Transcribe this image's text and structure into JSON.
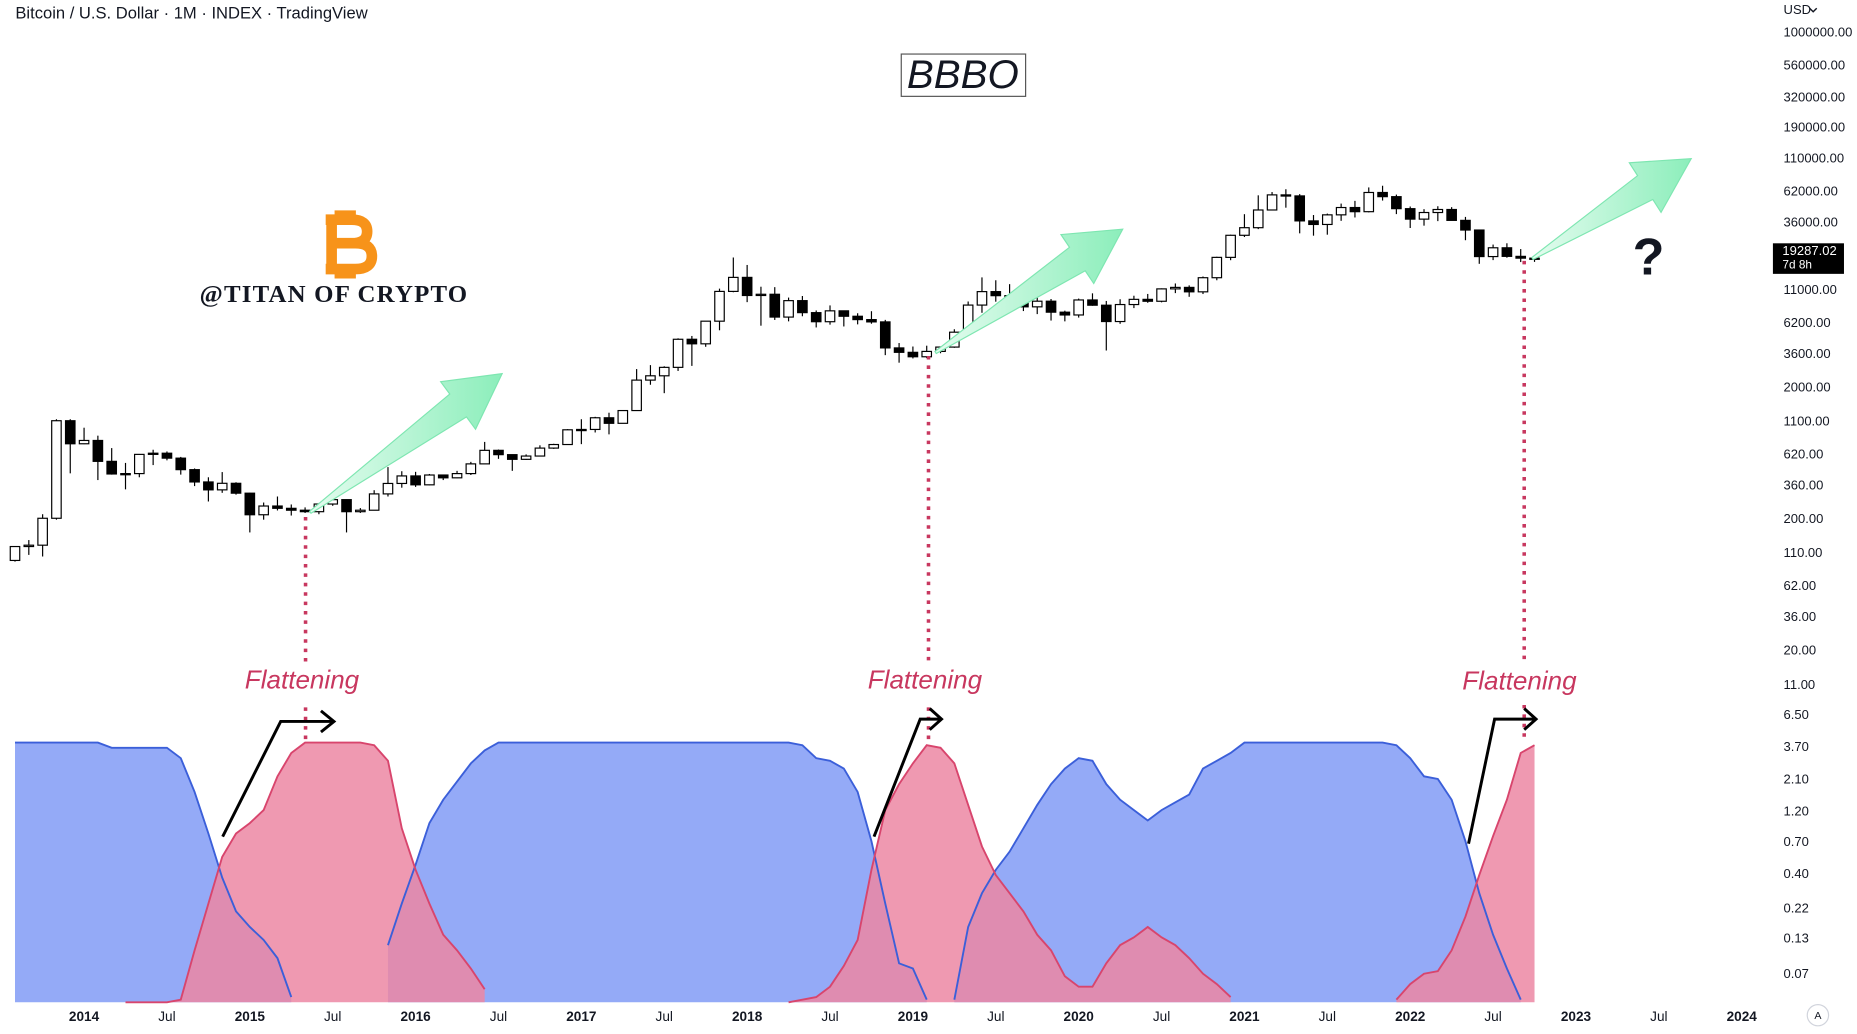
{
  "chart_data": [
    {
      "type": "candlestick",
      "title": "Bitcoin / U.S. Dollar · 1M · INDEX · TradingView",
      "currency": "USD",
      "countdown": "7d 8h",
      "scale_button": "A",
      "annotations": [
        "BBBO",
        "@TITAN OF CRYPTO",
        "Flattening",
        "Flattening",
        "Flattening",
        "?"
      ],
      "log_scale": true,
      "up_color": "#ffffff",
      "down_color": "#000000",
      "wick_color": "#000000",
      "xlim": [
        "2013-07",
        "2024-03"
      ],
      "ylim": [
        0.043,
        1780000
      ],
      "xticks": [
        {
          "value": "2014-01",
          "label": "2014"
        },
        {
          "value": "2014-07",
          "label": "Jul"
        },
        {
          "value": "2015-01",
          "label": "2015"
        },
        {
          "value": "2015-07",
          "label": "Jul"
        },
        {
          "value": "2016-01",
          "label": "2016"
        },
        {
          "value": "2016-07",
          "label": "Jul"
        },
        {
          "value": "2017-01",
          "label": "2017"
        },
        {
          "value": "2017-07",
          "label": "Jul"
        },
        {
          "value": "2018-01",
          "label": "2018"
        },
        {
          "value": "2018-07",
          "label": "Jul"
        },
        {
          "value": "2019-01",
          "label": "2019"
        },
        {
          "value": "2019-07",
          "label": "Jul"
        },
        {
          "value": "2020-01",
          "label": "2020"
        },
        {
          "value": "2020-07",
          "label": "Jul"
        },
        {
          "value": "2021-01",
          "label": "2021"
        },
        {
          "value": "2021-07",
          "label": "Jul"
        },
        {
          "value": "2022-01",
          "label": "2022"
        },
        {
          "value": "2022-07",
          "label": "Jul"
        },
        {
          "value": "2023-01",
          "label": "2023"
        },
        {
          "value": "2023-07",
          "label": "Jul"
        },
        {
          "value": "2024-01",
          "label": "2024"
        }
      ],
      "yticks": [
        {
          "value": 1000000,
          "label": "1000000.00"
        },
        {
          "value": 560000,
          "label": "560000.00"
        },
        {
          "value": 320000,
          "label": "320000.00"
        },
        {
          "value": 190000,
          "label": "190000.00"
        },
        {
          "value": 110000,
          "label": "110000.00"
        },
        {
          "value": 62000,
          "label": "62000.00"
        },
        {
          "value": 36000,
          "label": "36000.00"
        },
        {
          "value": 11000,
          "label": "11000.00"
        },
        {
          "value": 6200,
          "label": "6200.00"
        },
        {
          "value": 3600,
          "label": "3600.00"
        },
        {
          "value": 2000,
          "label": "2000.00"
        },
        {
          "value": 1100,
          "label": "1100.00"
        },
        {
          "value": 620,
          "label": "620.00"
        },
        {
          "value": 360,
          "label": "360.00"
        },
        {
          "value": 200,
          "label": "200.00"
        },
        {
          "value": 110,
          "label": "110.00"
        },
        {
          "value": 62,
          "label": "62.00"
        },
        {
          "value": 36,
          "label": "36.00"
        },
        {
          "value": 20,
          "label": "20.00"
        },
        {
          "value": 11,
          "label": "11.00"
        },
        {
          "value": 6.5,
          "label": "6.50"
        },
        {
          "value": 3.7,
          "label": "3.70"
        },
        {
          "value": 2.1,
          "label": "2.10"
        },
        {
          "value": 1.2,
          "label": "1.20"
        },
        {
          "value": 0.7,
          "label": "0.70"
        },
        {
          "value": 0.4,
          "label": "0.40"
        },
        0.22,
        0.13,
        0.07
      ],
      "x": [
        "2013-08",
        "2013-09",
        "2013-10",
        "2013-11",
        "2013-12",
        "2014-01",
        "2014-02",
        "2014-03",
        "2014-04",
        "2014-05",
        "2014-06",
        "2014-07",
        "2014-08",
        "2014-09",
        "2014-10",
        "2014-11",
        "2014-12",
        "2015-01",
        "2015-02",
        "2015-03",
        "2015-04",
        "2015-05",
        "2015-06",
        "2015-07",
        "2015-08",
        "2015-09",
        "2015-10",
        "2015-11",
        "2015-12",
        "2016-01",
        "2016-02",
        "2016-03",
        "2016-04",
        "2016-05",
        "2016-06",
        "2016-07",
        "2016-08",
        "2016-09",
        "2016-10",
        "2016-11",
        "2016-12",
        "2017-01",
        "2017-02",
        "2017-03",
        "2017-04",
        "2017-05",
        "2017-06",
        "2017-07",
        "2017-08",
        "2017-09",
        "2017-10",
        "2017-11",
        "2017-12",
        "2018-01",
        "2018-02",
        "2018-03",
        "2018-04",
        "2018-05",
        "2018-06",
        "2018-07",
        "2018-08",
        "2018-09",
        "2018-10",
        "2018-11",
        "2018-12",
        "2019-01",
        "2019-02",
        "2019-03",
        "2019-04",
        "2019-05",
        "2019-06",
        "2019-07",
        "2019-08",
        "2019-09",
        "2019-10",
        "2019-11",
        "2019-12",
        "2020-01",
        "2020-02",
        "2020-03",
        "2020-04",
        "2020-05",
        "2020-06",
        "2020-07",
        "2020-08",
        "2020-09",
        "2020-10",
        "2020-11",
        "2020-12",
        "2021-01",
        "2021-02",
        "2021-03",
        "2021-04",
        "2021-05",
        "2021-06",
        "2021-07",
        "2021-08",
        "2021-09",
        "2021-10",
        "2021-11",
        "2021-12",
        "2022-01",
        "2022-02",
        "2022-03",
        "2022-04",
        "2022-05",
        "2022-06",
        "2022-07",
        "2022-08",
        "2022-09",
        "2022-10"
      ],
      "open": [
        98,
        125,
        128,
        205,
        1130,
        755,
        800,
        555,
        445,
        448,
        627,
        640,
        587,
        480,
        387,
        337,
        378,
        318,
        218,
        254,
        244,
        236,
        230,
        263,
        284,
        230,
        236,
        314,
        377,
        430,
        368,
        437,
        416,
        448,
        531,
        673,
        624,
        575,
        609,
        700,
        745,
        964,
        970,
        1190,
        1080,
        1350,
        2300,
        2480,
        2875,
        4700,
        4340,
        6450,
        10860,
        13880,
        10110,
        10330,
        6930,
        9240,
        7490,
        6390,
        7730,
        7030,
        6630,
        6370,
        4040,
        3740,
        3460,
        3800,
        4100,
        5320,
        8550,
        10820,
        10080,
        9590,
        8290,
        9150,
        7550,
        7190,
        9350,
        8530,
        6410,
        8630,
        9450,
        9140,
        11350,
        11650,
        10780,
        13800,
        19700,
        28990,
        33110,
        45140,
        58800,
        57750,
        37300,
        35040,
        41460,
        47130,
        43820,
        61320,
        57000,
        46200,
        38470,
        43190,
        45530,
        37640,
        31790,
        19980,
        23300,
        20050,
        19430
      ],
      "high": [
        125,
        140,
        220,
        1160,
        1160,
        1000,
        870,
        700,
        540,
        630,
        680,
        660,
        600,
        490,
        420,
        460,
        385,
        320,
        270,
        300,
        261,
        248,
        268,
        315,
        285,
        245,
        335,
        502,
        467,
        462,
        445,
        440,
        470,
        550,
        780,
        683,
        625,
        627,
        735,
        755,
        975,
        1160,
        1210,
        1300,
        1350,
        2790,
        2990,
        2930,
        4780,
        4980,
        6470,
        11400,
        19660,
        17250,
        11790,
        11700,
        9750,
        10020,
        7780,
        8500,
        7760,
        7410,
        7680,
        6600,
        4400,
        4140,
        4200,
        4150,
        5600,
        9100,
        13880,
        13200,
        12330,
        10950,
        10370,
        9510,
        7750,
        9580,
        10500,
        9190,
        9470,
        10070,
        10390,
        11450,
        12480,
        12070,
        14100,
        19920,
        29300,
        41950,
        58350,
        61790,
        64900,
        59600,
        41330,
        42400,
        50500,
        52950,
        67000,
        69000,
        59100,
        47990,
        45800,
        48200,
        47430,
        40000,
        31960,
        24650,
        25210,
        22780,
        20200
      ],
      "low": [
        96,
        108,
        105,
        200,
        450,
        750,
        400,
        440,
        340,
        420,
        520,
        565,
        440,
        360,
        275,
        320,
        310,
        160,
        200,
        235,
        215,
        225,
        220,
        255,
        160,
        225,
        235,
        300,
        350,
        355,
        365,
        400,
        414,
        437,
        530,
        580,
        470,
        570,
        605,
        690,
        740,
        750,
        920,
        890,
        1080,
        1350,
        2120,
        1830,
        2700,
        2950,
        4120,
        5500,
        10700,
        9000,
        5960,
        6590,
        6430,
        7030,
        5780,
        6070,
        5880,
        6100,
        6170,
        3560,
        3120,
        3360,
        3380,
        3680,
        4050,
        5310,
        7470,
        9070,
        9350,
        7700,
        7300,
        6520,
        6430,
        6870,
        8450,
        3860,
        6160,
        8110,
        8900,
        8970,
        10540,
        9880,
        10370,
        13200,
        18750,
        28130,
        32300,
        44950,
        47000,
        30000,
        28800,
        29300,
        37330,
        39600,
        43300,
        53250,
        42000,
        32930,
        34320,
        37150,
        37700,
        26600,
        17600,
        18780,
        19580,
        18150,
        18200
      ],
      "close": [
        125,
        128,
        205,
        1130,
        755,
        800,
        555,
        445,
        448,
        627,
        640,
        587,
        480,
        387,
        337,
        378,
        318,
        218,
        254,
        244,
        236,
        230,
        263,
        284,
        230,
        236,
        314,
        377,
        430,
        368,
        437,
        416,
        448,
        531,
        673,
        624,
        575,
        609,
        700,
        745,
        964,
        970,
        1190,
        1080,
        1350,
        2300,
        2480,
        2875,
        4700,
        4340,
        6450,
        10860,
        13880,
        10110,
        10330,
        6930,
        9240,
        7490,
        6390,
        7730,
        7030,
        6630,
        6370,
        4040,
        3740,
        3460,
        3800,
        4100,
        5320,
        8550,
        10820,
        10080,
        9590,
        8290,
        9150,
        7550,
        7190,
        9350,
        8530,
        6410,
        8630,
        9450,
        9140,
        11350,
        11650,
        10780,
        13800,
        19700,
        28990,
        33110,
        45140,
        58800,
        57750,
        37300,
        35040,
        41460,
        47130,
        43820,
        61320,
        57000,
        46200,
        38470,
        43190,
        45530,
        37640,
        31790,
        19980,
        23300,
        20050,
        19430,
        19287.02
      ]
    },
    {
      "type": "area",
      "xlim": [
        "2013-07",
        "2024-03"
      ],
      "ylim": [
        0,
        100
      ],
      "x": [
        "2013-08",
        "2013-09",
        "2013-10",
        "2013-11",
        "2013-12",
        "2014-01",
        "2014-02",
        "2014-03",
        "2014-04",
        "2014-05",
        "2014-06",
        "2014-07",
        "2014-08",
        "2014-09",
        "2014-10",
        "2014-11",
        "2014-12",
        "2015-01",
        "2015-02",
        "2015-03",
        "2015-04",
        "2015-05",
        "2015-06",
        "2015-07",
        "2015-08",
        "2015-09",
        "2015-10",
        "2015-11",
        "2015-12",
        "2016-01",
        "2016-02",
        "2016-03",
        "2016-04",
        "2016-05",
        "2016-06",
        "2016-07",
        "2016-08",
        "2016-09",
        "2016-10",
        "2016-11",
        "2016-12",
        "2017-01",
        "2017-02",
        "2017-03",
        "2017-04",
        "2017-05",
        "2017-06",
        "2017-07",
        "2017-08",
        "2017-09",
        "2017-10",
        "2017-11",
        "2017-12",
        "2018-01",
        "2018-02",
        "2018-03",
        "2018-04",
        "2018-05",
        "2018-06",
        "2018-07",
        "2018-08",
        "2018-09",
        "2018-10",
        "2018-11",
        "2018-12",
        "2019-01",
        "2019-02",
        "2019-03",
        "2019-04",
        "2019-05",
        "2019-06",
        "2019-07",
        "2019-08",
        "2019-09",
        "2019-10",
        "2019-11",
        "2019-12",
        "2020-01",
        "2020-02",
        "2020-03",
        "2020-04",
        "2020-05",
        "2020-06",
        "2020-07",
        "2020-08",
        "2020-09",
        "2020-10",
        "2020-11",
        "2020-12",
        "2021-01",
        "2021-02",
        "2021-03",
        "2021-04",
        "2021-05",
        "2021-06",
        "2021-07",
        "2021-08",
        "2021-09",
        "2021-10",
        "2021-11",
        "2021-12",
        "2022-01",
        "2022-02",
        "2022-03",
        "2022-04",
        "2022-05",
        "2022-06",
        "2022-07",
        "2022-08",
        "2022-09",
        "2022-10"
      ],
      "series": [
        {
          "color": "#3b5fd9",
          "fill": "#8ea5f7",
          "values": [
            100,
            100,
            100,
            100,
            100,
            100,
            100,
            98,
            98,
            98,
            98,
            98,
            94,
            81,
            65,
            48,
            35,
            29,
            24,
            17,
            2,
            null,
            null,
            null,
            null,
            null,
            null,
            22,
            38,
            53,
            69,
            78,
            85,
            92,
            97,
            100,
            100,
            100,
            100,
            100,
            100,
            100,
            100,
            100,
            100,
            100,
            100,
            100,
            100,
            100,
            100,
            100,
            100,
            100,
            100,
            100,
            100,
            99,
            94,
            93,
            90,
            81,
            62,
            38,
            15,
            13,
            1,
            null,
            1,
            29,
            42,
            51,
            58,
            67,
            76,
            84,
            90,
            94,
            93,
            84,
            78,
            74,
            70,
            74,
            77,
            80,
            90,
            93,
            96,
            100,
            100,
            100,
            100,
            100,
            100,
            100,
            100,
            100,
            100,
            100,
            99,
            94,
            87,
            86,
            78,
            62,
            42,
            26,
            13,
            1,
            null
          ]
        },
        {
          "color": "#d8456d",
          "fill": "#ec87a3",
          "values": [
            null,
            null,
            null,
            null,
            null,
            null,
            null,
            null,
            0,
            0,
            0,
            0,
            1,
            20,
            38,
            56,
            65,
            69,
            74,
            87,
            96,
            100,
            100,
            100,
            100,
            100,
            99,
            93,
            67,
            51,
            38,
            26,
            20,
            13,
            5,
            null,
            null,
            null,
            null,
            null,
            null,
            null,
            null,
            null,
            null,
            null,
            null,
            null,
            null,
            null,
            null,
            null,
            null,
            null,
            null,
            null,
            0,
            1,
            2,
            6,
            14,
            24,
            51,
            74,
            84,
            92,
            99,
            98,
            92,
            76,
            60,
            49,
            42,
            35,
            26,
            20,
            10,
            6,
            6,
            15,
            22,
            25,
            29,
            25,
            22,
            17,
            11,
            7,
            2,
            null,
            null,
            null,
            null,
            null,
            null,
            null,
            null,
            null,
            null,
            null,
            1,
            7,
            11,
            12,
            20,
            33,
            49,
            64,
            78,
            96,
            99
          ]
        }
      ]
    }
  ]
}
